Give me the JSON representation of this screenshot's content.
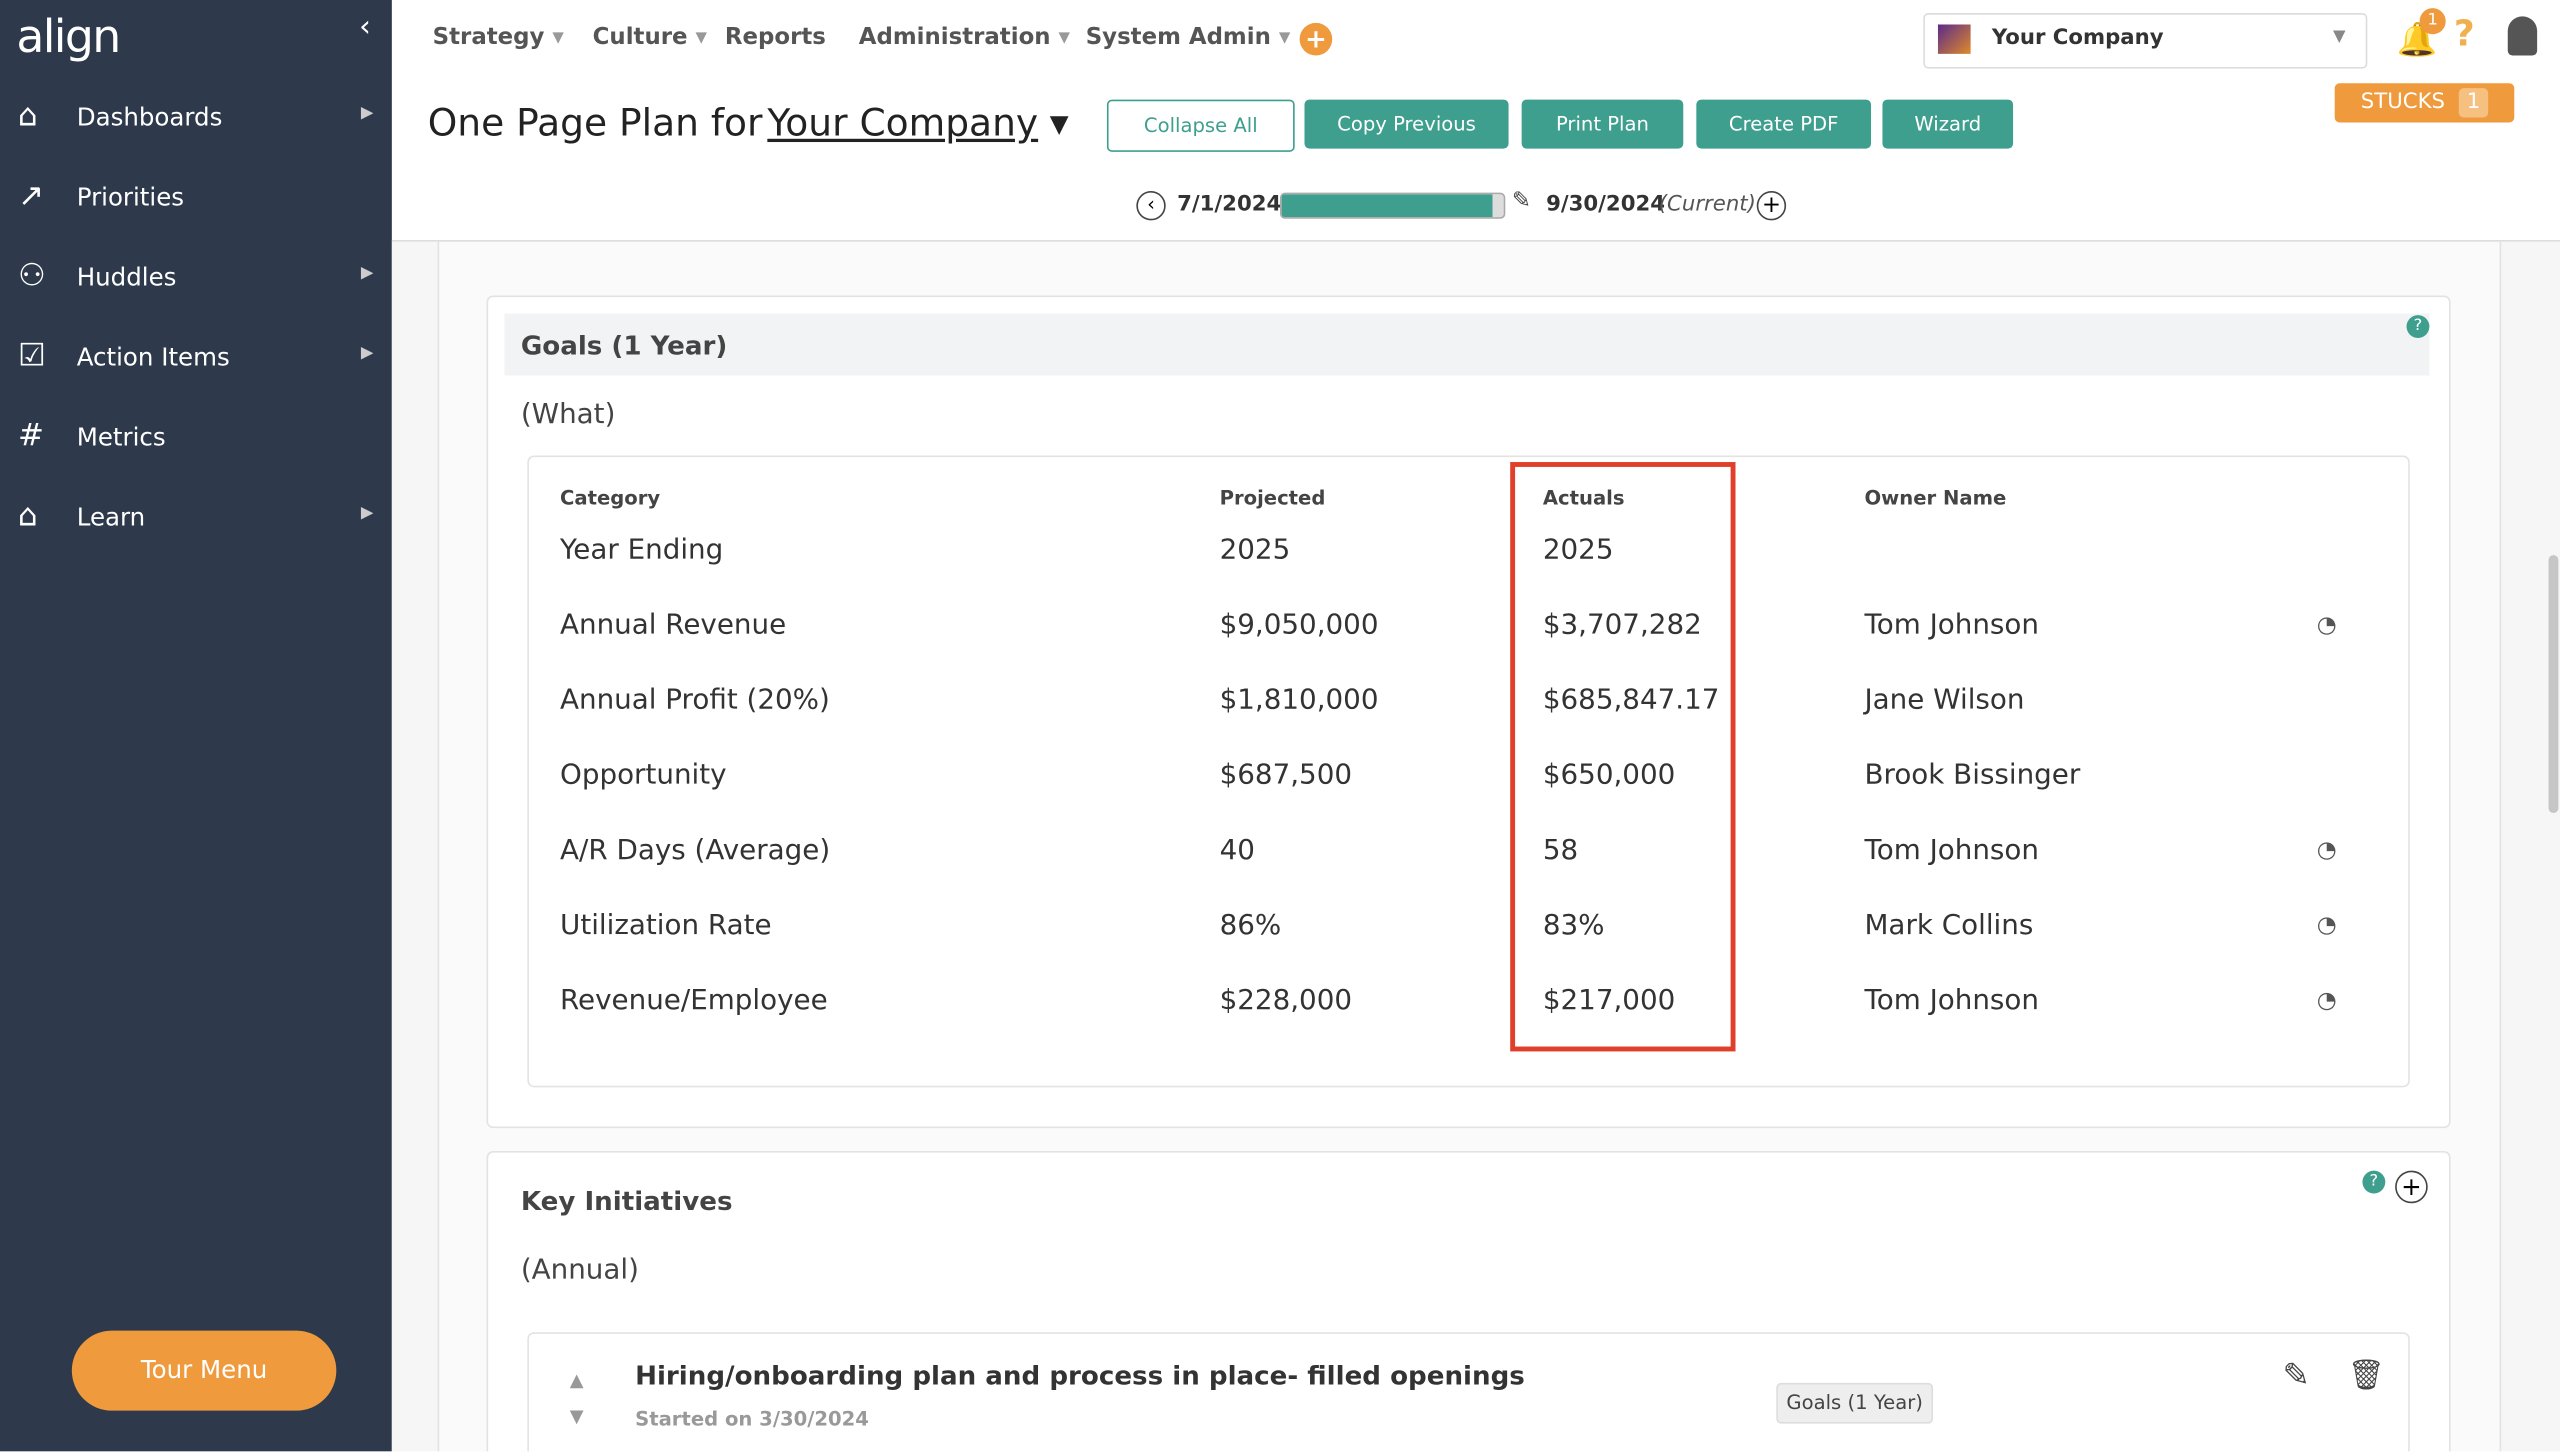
{
  "sidebar": {
    "logo": "align",
    "items": [
      "Dashboards",
      "Priorities",
      "Huddles",
      "Action Items",
      "Metrics",
      "Learn"
    ],
    "submenu": [
      true,
      false,
      true,
      true,
      false,
      true
    ],
    "tour_button": "Tour Menu"
  },
  "topnav": {
    "items": [
      "Strategy",
      "Culture",
      "Reports",
      "Administration",
      "System Admin"
    ],
    "dropdown": [
      true,
      true,
      false,
      true,
      true
    ],
    "company": "Your Company",
    "notification_count": 1
  },
  "header": {
    "title_prefix": "One Page Plan for",
    "company": "Your Company",
    "buttons": [
      "Collapse All",
      "Copy Previous",
      "Print Plan",
      "Create PDF",
      "Wizard"
    ],
    "stucks_label": "STUCKS",
    "stucks_count": 1,
    "start_date": "7/1/2024",
    "end_date": "9/30/2024",
    "current": "(Current)"
  },
  "goals": {
    "title": "Goals (1 Year)",
    "subtitle": "(What)",
    "columns": [
      "Category",
      "Projected",
      "Actuals",
      "Owner Name"
    ],
    "rows": [
      {
        "category": "Year Ending",
        "projected": "2025",
        "actual": "2025"
      },
      {
        "category": "Annual Revenue",
        "projected": "$9,050,000",
        "actual": "$3,707,282",
        "owner": "Tom Johnson",
        "gauge": true
      },
      {
        "category": "Annual Profit (20%)",
        "projected": "$1,810,000",
        "actual": "$685,847.17",
        "owner": "Jane Wilson",
        "gauge": false
      },
      {
        "category": "Opportunity",
        "projected": "$687,500",
        "actual": "$650,000",
        "owner": "Brook Bissinger",
        "gauge": false
      },
      {
        "category": "A/R Days (Average)",
        "projected": "40",
        "actual": "58",
        "owner": "Tom Johnson",
        "gauge": true
      },
      {
        "category": "Utilization Rate",
        "projected": "86%",
        "actual": "83%",
        "owner": "Mark Collins",
        "gauge": true
      },
      {
        "category": "Revenue/Employee",
        "projected": "$228,000",
        "actual": "$217,000",
        "owner": "Tom Johnson",
        "gauge": true
      }
    ]
  },
  "initiatives": {
    "title": "Key Initiatives",
    "subtitle": "(Annual)",
    "items": [
      {
        "title": "Hiring/onboarding plan and process in place- filled openings",
        "started": "Started on 3/30/2024"
      }
    ]
  },
  "tooltip": "Goals (1 Year)"
}
